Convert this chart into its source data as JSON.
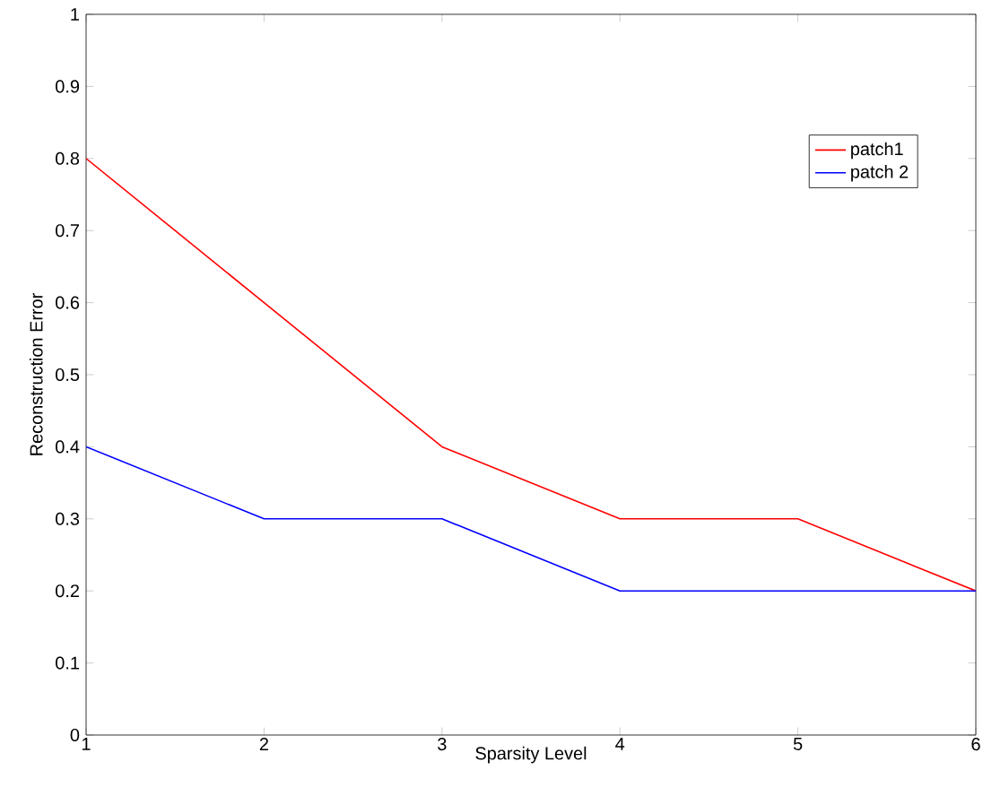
{
  "chart_data": {
    "type": "line",
    "xlabel": "Sparsity Level",
    "ylabel": "Reconstruction Error",
    "x": [
      1,
      2,
      3,
      4,
      5,
      6
    ],
    "series": [
      {
        "name": "patch1",
        "color": "#ff0000",
        "values": [
          0.8,
          0.6,
          0.4,
          0.3,
          0.3,
          0.2
        ]
      },
      {
        "name": "patch 2",
        "color": "#0000ff",
        "values": [
          0.4,
          0.3,
          0.3,
          0.2,
          0.2,
          0.2
        ]
      }
    ],
    "xlim": [
      1,
      6
    ],
    "ylim": [
      0,
      1
    ],
    "xticks": [
      1,
      2,
      3,
      4,
      5,
      6
    ],
    "yticks": [
      0,
      0.1,
      0.2,
      0.3,
      0.4,
      0.5,
      0.6,
      0.7,
      0.8,
      0.9,
      1
    ],
    "grid": false,
    "legend": "top right",
    "line_style": "solid"
  }
}
